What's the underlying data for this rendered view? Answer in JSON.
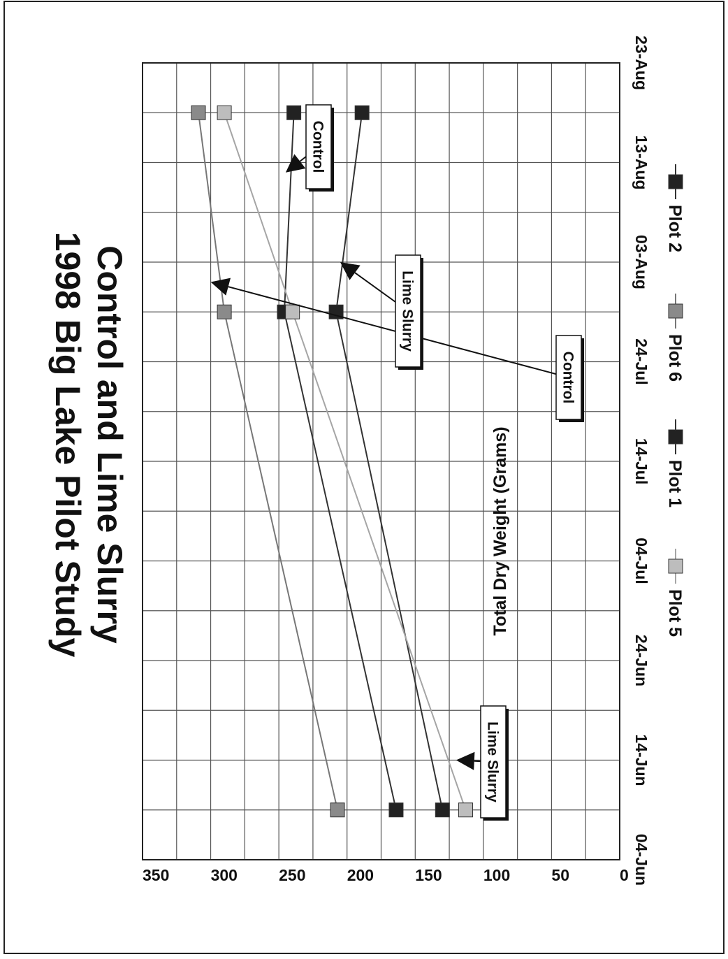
{
  "chart_data": {
    "type": "line",
    "title": "1998 Big Lake Pilot Study",
    "subtitle": "Control and Lime Slurry",
    "ylabel": "Total Dry Weight (Grams)",
    "xlabel": "",
    "ylim": [
      0,
      350
    ],
    "yticks": [
      "0",
      "50",
      "100",
      "150",
      "200",
      "250",
      "300",
      "350"
    ],
    "xticks": [
      "04-Jun",
      "14-Jun",
      "24-Jun",
      "04-Jul",
      "14-Jul",
      "24-Jul",
      "03-Aug",
      "13-Aug",
      "23-Aug"
    ],
    "x": [
      "09-Jun",
      "29-Jul",
      "18-Aug"
    ],
    "grid": true,
    "legend_position": "bottom",
    "series": [
      {
        "name": "Plot 2",
        "values": [
          164,
          246,
          239
        ],
        "color": "#222222",
        "line": "#333333"
      },
      {
        "name": "Plot 6",
        "values": [
          207,
          290,
          309
        ],
        "color": "#8a8a8a",
        "line": "#777777"
      },
      {
        "name": "Plot 1",
        "values": [
          130,
          208,
          189
        ],
        "color": "#222222",
        "line": "#333333"
      },
      {
        "name": "Plot 5",
        "values": [
          113,
          240,
          290
        ],
        "color": "#bdbdbd",
        "line": "#a5a5a5"
      }
    ],
    "annotations": [
      {
        "text": "Control",
        "at_date": "01-Aug",
        "at_value": 300
      },
      {
        "text": "Control",
        "at_date": "12-Aug",
        "at_value": 245
      },
      {
        "text": "Lime Slurry",
        "at_date": "03-Aug",
        "at_value": 205
      },
      {
        "text": "Lime Slurry",
        "at_date": "14-Jun",
        "at_value": 120
      }
    ]
  }
}
